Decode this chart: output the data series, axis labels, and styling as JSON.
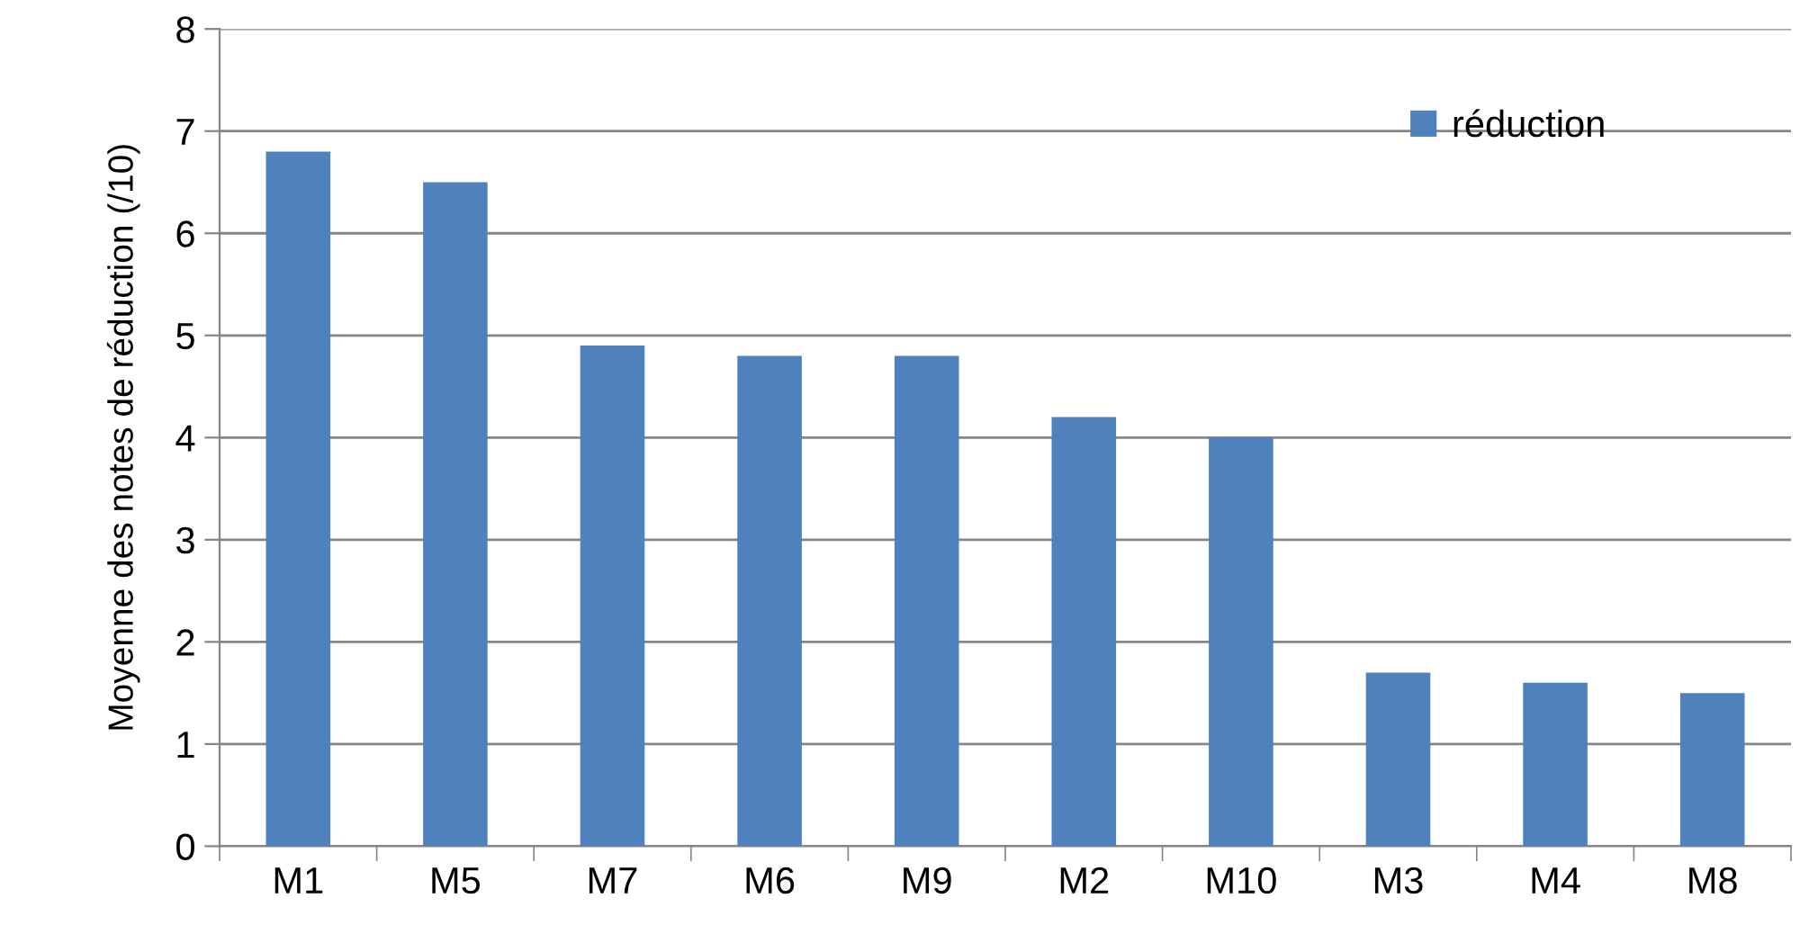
{
  "chart_data": {
    "type": "bar",
    "ylabel": "Moyenne des notes de réduction (/10)",
    "categories": [
      "M1",
      "M5",
      "M7",
      "M6",
      "M9",
      "M2",
      "M10",
      "M3",
      "M4",
      "M8"
    ],
    "series": [
      {
        "name": "réduction",
        "color": "#4f81bd",
        "values": [
          6.8,
          6.5,
          4.9,
          4.8,
          4.8,
          4.2,
          4.0,
          1.7,
          1.6,
          1.5
        ]
      }
    ],
    "ylim": [
      0,
      8
    ],
    "yticks": [
      0,
      1,
      2,
      3,
      4,
      5,
      6,
      7,
      8
    ],
    "grid": "y",
    "legend": "top right"
  }
}
